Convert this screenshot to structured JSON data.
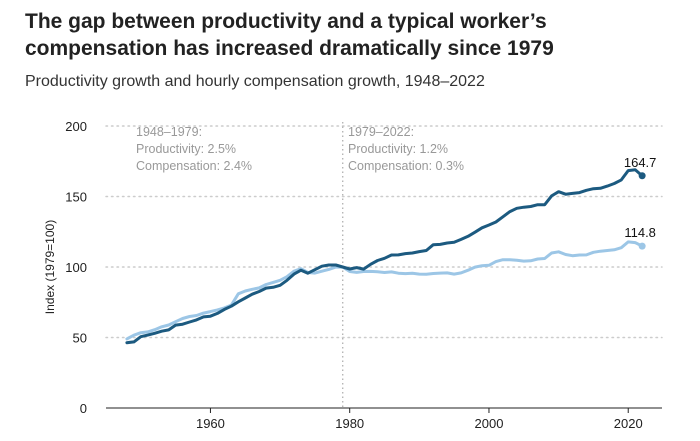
{
  "title": "The gap between productivity and a typical worker’s compensation has increased dramatically since 1979",
  "subtitle": "Productivity growth and hourly compensation growth, 1948–2022",
  "chart_data": {
    "type": "line",
    "ylabel": "Index (1979=100)",
    "xlim": [
      1945,
      2026
    ],
    "ylim": [
      0,
      200
    ],
    "yticks": [
      0,
      50,
      100,
      150,
      200
    ],
    "xticks": [
      1960,
      1980,
      2000,
      2020
    ],
    "grid": "horizontal dotted",
    "divider_year": 1979,
    "annotations": [
      {
        "period": "1948–1979:",
        "productivity": "Productivity: 2.5%",
        "compensation": "Compensation: 2.4%"
      },
      {
        "period": "1979–2022:",
        "productivity": "Productivity: 1.2%",
        "compensation": "Compensation: 0.3%"
      }
    ],
    "colors": {
      "productivity": "#1c5a80",
      "compensation": "#9cc6e6",
      "grid": "#cccccc",
      "divider": "#aaaaaa"
    },
    "series": [
      {
        "name": "Productivity",
        "end_label": "164.7",
        "x": [
          1948,
          1949,
          1950,
          1951,
          1952,
          1953,
          1954,
          1955,
          1956,
          1957,
          1958,
          1959,
          1960,
          1961,
          1962,
          1963,
          1964,
          1965,
          1966,
          1967,
          1968,
          1969,
          1970,
          1971,
          1972,
          1973,
          1974,
          1975,
          1976,
          1977,
          1978,
          1979,
          1980,
          1981,
          1982,
          1983,
          1984,
          1985,
          1986,
          1987,
          1988,
          1989,
          1990,
          1991,
          1992,
          1993,
          1994,
          1995,
          1996,
          1997,
          1998,
          1999,
          2000,
          2001,
          2002,
          2003,
          2004,
          2005,
          2006,
          2007,
          2008,
          2009,
          2010,
          2011,
          2012,
          2013,
          2014,
          2015,
          2016,
          2017,
          2018,
          2019,
          2020,
          2021,
          2022
        ],
        "values": [
          46.3,
          46.9,
          50.6,
          51.7,
          53.0,
          54.5,
          55.4,
          58.8,
          59.4,
          61.0,
          62.5,
          64.6,
          65.1,
          67.1,
          69.9,
          72.2,
          75.3,
          78.0,
          80.7,
          82.6,
          85.0,
          85.6,
          87.0,
          90.6,
          95.0,
          97.7,
          95.6,
          98.1,
          100.6,
          101.4,
          101.4,
          100.0,
          98.6,
          99.6,
          98.5,
          101.9,
          104.6,
          106.2,
          108.5,
          108.6,
          109.5,
          109.9,
          110.9,
          111.7,
          115.8,
          116.0,
          117.0,
          117.5,
          119.6,
          121.8,
          124.7,
          127.8,
          129.8,
          131.9,
          135.6,
          139.3,
          141.6,
          142.4,
          142.9,
          144.2,
          144.2,
          150.4,
          153.4,
          151.6,
          152.2,
          152.8,
          154.4,
          155.5,
          155.8,
          157.4,
          159.2,
          161.8,
          168.4,
          169.0,
          164.7
        ]
      },
      {
        "name": "Compensation",
        "end_label": "114.8",
        "x": [
          1948,
          1949,
          1950,
          1951,
          1952,
          1953,
          1954,
          1955,
          1956,
          1957,
          1958,
          1959,
          1960,
          1961,
          1962,
          1963,
          1964,
          1965,
          1966,
          1967,
          1968,
          1969,
          1970,
          1971,
          1972,
          1973,
          1974,
          1975,
          1976,
          1977,
          1978,
          1979,
          1980,
          1981,
          1982,
          1983,
          1984,
          1985,
          1986,
          1987,
          1988,
          1989,
          1990,
          1991,
          1992,
          1993,
          1994,
          1995,
          1996,
          1997,
          1998,
          1999,
          2000,
          2001,
          2002,
          2003,
          2004,
          2005,
          2006,
          2007,
          2008,
          2009,
          2010,
          2011,
          2012,
          2013,
          2014,
          2015,
          2016,
          2017,
          2018,
          2019,
          2020,
          2021,
          2022
        ],
        "values": [
          49.0,
          51.6,
          53.4,
          54.0,
          55.5,
          57.6,
          58.9,
          61.2,
          63.5,
          64.9,
          65.6,
          67.3,
          68.4,
          69.6,
          71.0,
          72.9,
          81.0,
          83.0,
          84.2,
          85.2,
          87.6,
          89.1,
          90.6,
          93.1,
          97.0,
          98.8,
          96.1,
          95.7,
          97.0,
          98.3,
          99.9,
          100.0,
          96.8,
          96.2,
          96.8,
          96.9,
          96.6,
          96.1,
          96.5,
          95.6,
          95.3,
          95.5,
          95.0,
          94.9,
          95.4,
          95.7,
          95.8,
          95.0,
          95.8,
          97.7,
          99.9,
          100.9,
          101.2,
          103.8,
          105.2,
          105.2,
          104.8,
          104.2,
          104.4,
          105.7,
          106.0,
          109.9,
          110.8,
          108.9,
          108.0,
          108.5,
          108.6,
          110.4,
          111.2,
          111.7,
          112.2,
          113.7,
          117.8,
          117.3,
          114.8
        ]
      }
    ]
  }
}
